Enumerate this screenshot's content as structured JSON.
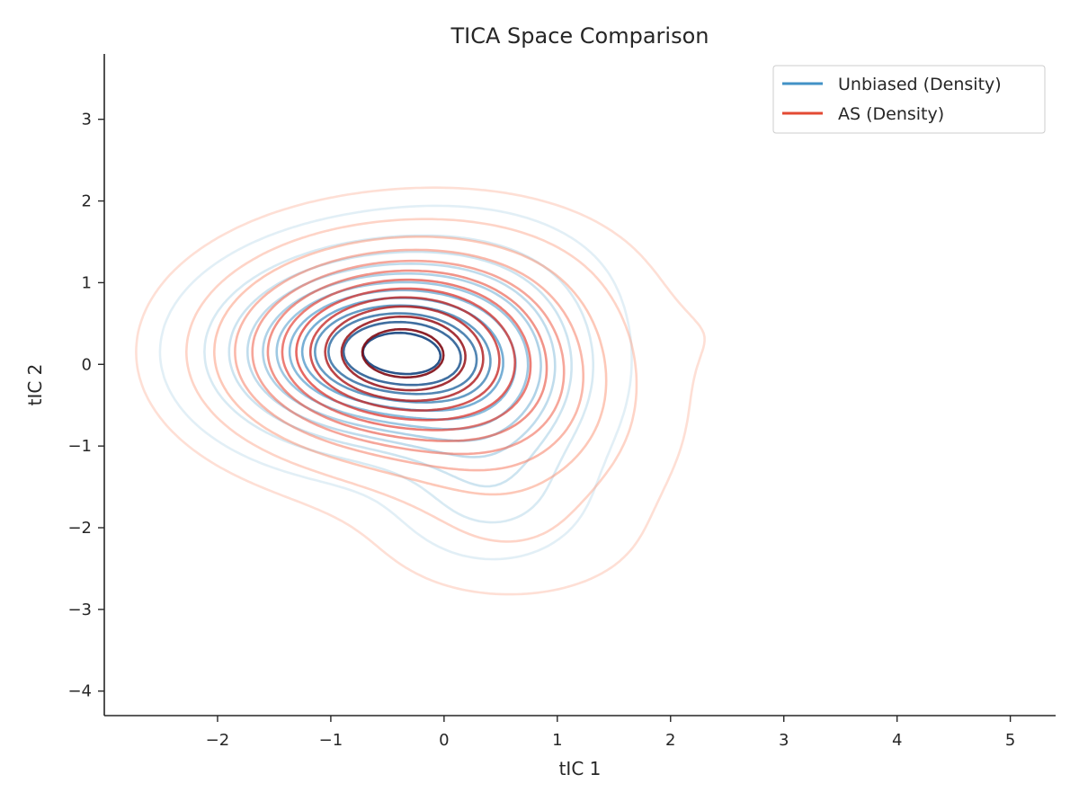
{
  "chart_data": {
    "type": "contour",
    "title": "TICA Space Comparison",
    "xlabel": "tIC 1",
    "ylabel": "tIC 2",
    "xlim": [
      -3.0,
      5.4
    ],
    "ylim": [
      -4.3,
      3.8
    ],
    "xticks": [
      -2,
      -1,
      0,
      1,
      2,
      3,
      4,
      5
    ],
    "yticks": [
      -4,
      -3,
      -2,
      -1,
      0,
      1,
      2,
      3
    ],
    "xtick_labels": [
      "−2",
      "−1",
      "0",
      "1",
      "2",
      "3",
      "4",
      "5"
    ],
    "ytick_labels": [
      "−4",
      "−3",
      "−2",
      "−1",
      "0",
      "1",
      "2",
      "3"
    ],
    "grid": false,
    "legend_position": "top-right",
    "series": [
      {
        "name": "Unbiased (Density)",
        "color": "#4292c6",
        "colormap": "Blues",
        "levels": 12,
        "peak": [
          -0.55,
          0.15
        ],
        "components": [
          {
            "cx": -0.55,
            "cy": 0.15,
            "sx": 0.75,
            "sy": 0.62,
            "w": 1.0
          },
          {
            "cx": 0.35,
            "cy": -0.3,
            "sx": 0.55,
            "sy": 0.75,
            "w": 0.33
          },
          {
            "cx": 0.45,
            "cy": -1.65,
            "sx": 0.45,
            "sy": 0.45,
            "w": 0.1
          },
          {
            "cx": 0.15,
            "cy": 1.0,
            "sx": 0.75,
            "sy": 0.55,
            "w": 0.08
          },
          {
            "cx": 2.7,
            "cy": 0.4,
            "sx": 0.35,
            "sy": 0.3,
            "w": 0.03
          }
        ]
      },
      {
        "name": "AS (Density)",
        "color": "#e34a33",
        "colormap": "Reds",
        "levels": 12,
        "peak": [
          -0.5,
          0.15
        ],
        "components": [
          {
            "cx": -0.5,
            "cy": 0.15,
            "sx": 0.85,
            "sy": 0.72,
            "w": 1.0
          },
          {
            "cx": 0.55,
            "cy": -0.6,
            "sx": 0.75,
            "sy": 0.9,
            "w": 0.28
          },
          {
            "cx": 0.3,
            "cy": 1.0,
            "sx": 0.8,
            "sy": 0.6,
            "w": 0.1
          },
          {
            "cx": 2.6,
            "cy": 0.4,
            "sx": 0.45,
            "sy": 0.4,
            "w": 0.02
          },
          {
            "cx": 0.6,
            "cy": -2.2,
            "sx": 0.7,
            "sy": 0.45,
            "w": 0.05
          }
        ]
      }
    ]
  }
}
